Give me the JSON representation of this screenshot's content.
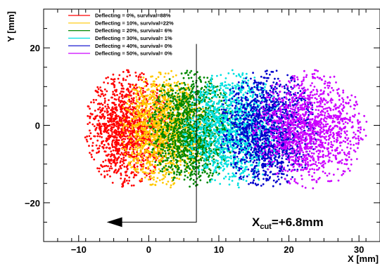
{
  "chart_data": {
    "type": "scatter",
    "xlabel": "X [mm]",
    "ylabel": "Y [mm]",
    "xlim": [
      -15,
      33
    ],
    "ylim": [
      -30,
      30
    ],
    "x_ticks": [
      -10,
      0,
      10,
      20,
      30
    ],
    "y_ticks": [
      -20,
      0,
      20
    ],
    "x_tick_labels": [
      "−10",
      "0",
      "10",
      "20",
      "30"
    ],
    "y_tick_labels": [
      "−20",
      "0",
      "20"
    ],
    "legend_position": "top-left",
    "series": [
      {
        "name": "Deflecting = 0%, survival=88%",
        "color": "#ff0000",
        "center": [
          -3,
          -1
        ],
        "spread": [
          3,
          7.5
        ]
      },
      {
        "name": "Deflecting = 10%, survival=22%",
        "color": "#ffc800",
        "center": [
          2,
          -1
        ],
        "spread": [
          3,
          7.5
        ]
      },
      {
        "name": "Deflecting = 20%, survival= 6%",
        "color": "#008800",
        "center": [
          6,
          -1
        ],
        "spread": [
          3,
          7.5
        ]
      },
      {
        "name": "Deflecting = 30%, survival= 1%",
        "color": "#00e0e0",
        "center": [
          12,
          -1
        ],
        "spread": [
          3.5,
          7.5
        ]
      },
      {
        "name": "Deflecting = 40%, survival= 0%",
        "color": "#0000cc",
        "center": [
          17,
          -1
        ],
        "spread": [
          3.5,
          7.5
        ]
      },
      {
        "name": "Deflecting = 50%, survival= 0%",
        "color": "#cc00ff",
        "center": [
          23,
          -1
        ],
        "spread": [
          4,
          7.5
        ]
      }
    ],
    "annotation": {
      "prefix": "X",
      "subscript": "cut",
      "value": "=+6.8mm",
      "cut_x": 6.8,
      "arrow_from_y": 21,
      "arrow_corner_y": -25,
      "arrow_to_x": -6
    }
  }
}
